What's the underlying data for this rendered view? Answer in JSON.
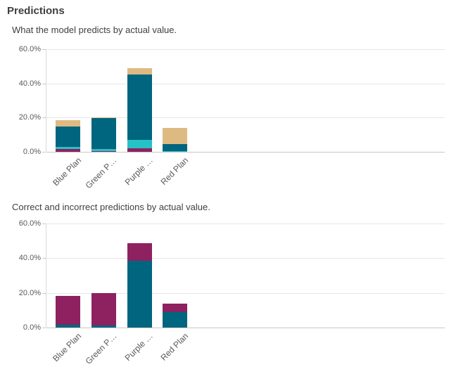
{
  "page": {
    "title": "Predictions"
  },
  "chart_data": [
    {
      "type": "bar",
      "stacked": true,
      "title": "What the model predicts by actual value.",
      "xlabel": "",
      "ylabel": "",
      "categories": [
        "Blue Plan",
        "Green P…",
        "Purple …",
        "Red Plan"
      ],
      "series": [
        {
          "name": "magenta",
          "color": "#8e2160",
          "values": [
            1.8,
            0.5,
            1.9,
            0
          ]
        },
        {
          "name": "cyan",
          "color": "#25c2c6",
          "values": [
            1.1,
            1.2,
            4.9,
            0.4
          ]
        },
        {
          "name": "teal",
          "color": "#00657f",
          "values": [
            11.8,
            17.9,
            38.6,
            4.0
          ]
        },
        {
          "name": "tan",
          "color": "#deba83",
          "values": [
            3.9,
            0.4,
            3.3,
            9.4
          ]
        }
      ],
      "stack_order": "bottom-to-top",
      "ylim": [
        0,
        60
      ],
      "y_ticks": [
        {
          "label": "60.0%",
          "value": 60
        },
        {
          "label": "40.0%",
          "value": 40
        },
        {
          "label": "20.0%",
          "value": 20
        },
        {
          "label": "0.0%",
          "value": 0
        }
      ],
      "grid": true,
      "legend": "none"
    },
    {
      "type": "bar",
      "stacked": true,
      "title": "Correct and incorrect predictions by actual value.",
      "xlabel": "",
      "ylabel": "",
      "categories": [
        "Blue Plan",
        "Green P…",
        "Purple …",
        "Red Plan"
      ],
      "series": [
        {
          "name": "teal",
          "color": "#00657f",
          "values": [
            1.8,
            1.2,
            38.6,
            8.9
          ]
        },
        {
          "name": "magenta",
          "color": "#8e2160",
          "values": [
            16.5,
            18.8,
            10.1,
            4.9
          ]
        }
      ],
      "stack_order": "bottom-to-top",
      "ylim": [
        0,
        60
      ],
      "y_ticks": [
        {
          "label": "60.0%",
          "value": 60
        },
        {
          "label": "40.0%",
          "value": 40
        },
        {
          "label": "20.0%",
          "value": 20
        },
        {
          "label": "0.0%",
          "value": 0
        }
      ],
      "grid": true,
      "legend": "none"
    }
  ]
}
